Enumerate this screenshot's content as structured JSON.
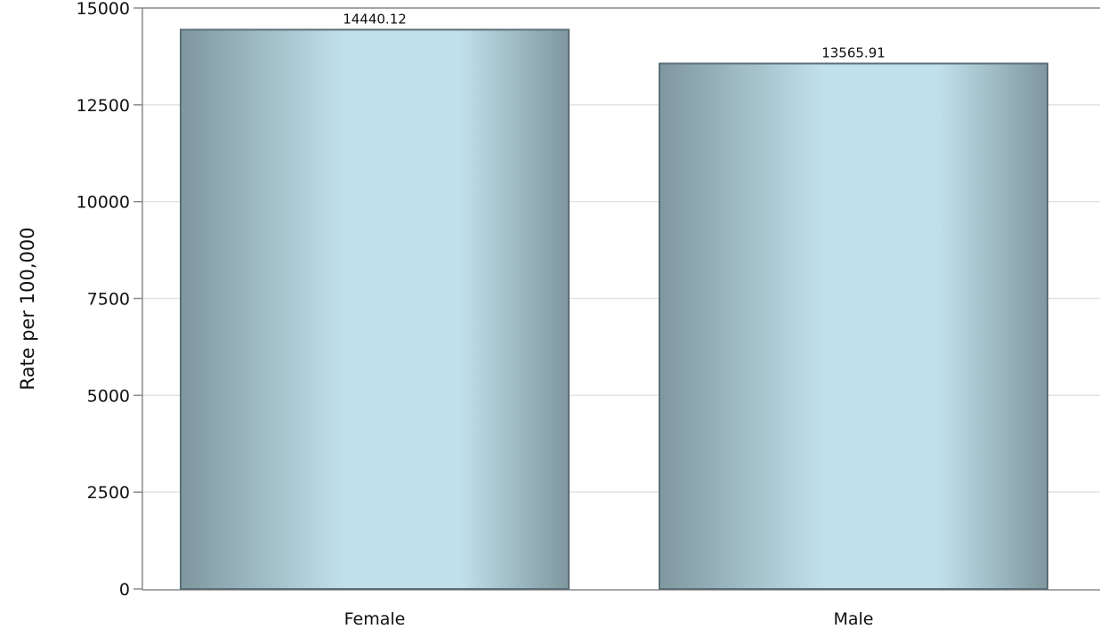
{
  "chart_data": {
    "type": "bar",
    "title": "",
    "xlabel": "",
    "ylabel": "Rate per 100,000",
    "categories": [
      "Female",
      "Male"
    ],
    "values": [
      14440.12,
      13565.91
    ],
    "data_labels": [
      "14440.12",
      "13565.91"
    ],
    "ylim": [
      0,
      15000
    ],
    "yticks": [
      0,
      2500,
      5000,
      7500,
      10000,
      12500,
      15000
    ],
    "ytick_labels": [
      "0",
      "2500",
      "5000",
      "7500",
      "10000",
      "12500",
      "15000"
    ],
    "grid": true,
    "legend": "none",
    "colors": {
      "bar_edge": "#5b6e76",
      "bar_dark": "#7f979f",
      "bar_light": "#c0e0ea",
      "grid": "#e2e2e2",
      "axis": "#8a8a8a"
    }
  }
}
